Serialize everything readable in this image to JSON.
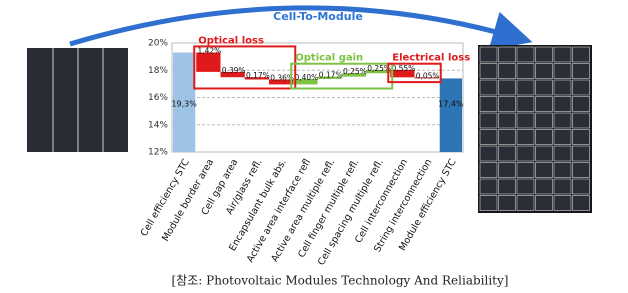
{
  "chart_data": {
    "type": "waterfall",
    "title": "Cell-To-Module",
    "categories": [
      "Cell efficiency STC",
      "Module border area",
      "Cell gap area",
      "Air/glass refl.",
      "Encapsulant bulk abs.",
      "Active area interface refl",
      "Active area multiple refl.",
      "Cell finger multiple refl.",
      "Cell spacing multiple refl.",
      "Cell interconnection",
      "String interconnection",
      "Module efficiency STC"
    ],
    "series": [
      {
        "color": "#9dc3e6",
        "direction": "total",
        "values": [
          19.3,
          null,
          null,
          null,
          null,
          null,
          null,
          null,
          null,
          null,
          null,
          null
        ],
        "value_labels": [
          "19,3%",
          null,
          null,
          null,
          null,
          null,
          null,
          null,
          null,
          null,
          null,
          null
        ]
      },
      {
        "name": "Optical loss",
        "color": "#e0191b",
        "direction": "down",
        "values": [
          null,
          1.42,
          0.39,
          0.17,
          0.36,
          null,
          null,
          null,
          null,
          null,
          null,
          null
        ],
        "value_labels": [
          null,
          "1,42%",
          "0,39%",
          "0,17%",
          "0,36%",
          null,
          null,
          null,
          null,
          null,
          null,
          null
        ]
      },
      {
        "name": "Optical gain",
        "color": "#7dc242",
        "direction": "up",
        "values": [
          null,
          null,
          null,
          null,
          null,
          0.4,
          0.17,
          0.25,
          0.25,
          null,
          null,
          null
        ],
        "value_labels": [
          null,
          null,
          null,
          null,
          null,
          "0,40%",
          "0,17%",
          "0,25%",
          "0,25%",
          null,
          null,
          null
        ]
      },
      {
        "name": "Electrical loss",
        "color": "#e0191b",
        "direction": "down",
        "values": [
          null,
          null,
          null,
          null,
          null,
          null,
          null,
          null,
          null,
          0.55,
          0.05,
          null
        ],
        "value_labels": [
          null,
          null,
          null,
          null,
          null,
          null,
          null,
          null,
          null,
          "0,55%",
          "0,05%",
          null
        ]
      },
      {
        "color": "#2e75b6",
        "direction": "total",
        "values": [
          null,
          null,
          null,
          null,
          null,
          null,
          null,
          null,
          null,
          null,
          null,
          17.4
        ],
        "value_labels": [
          null,
          null,
          null,
          null,
          null,
          null,
          null,
          null,
          null,
          null,
          null,
          "17,4%"
        ]
      }
    ],
    "ylim": [
      12,
      20
    ],
    "yticks": [
      {
        "value": 12,
        "label": "12%"
      },
      {
        "value": 14,
        "label": "14%"
      },
      {
        "value": 16,
        "label": "16%"
      },
      {
        "value": 18,
        "label": "18%"
      },
      {
        "value": 20,
        "label": "20%"
      }
    ],
    "grid": true
  },
  "caption": "[참조: Photovoltaic Modules Technology And Reliability]"
}
